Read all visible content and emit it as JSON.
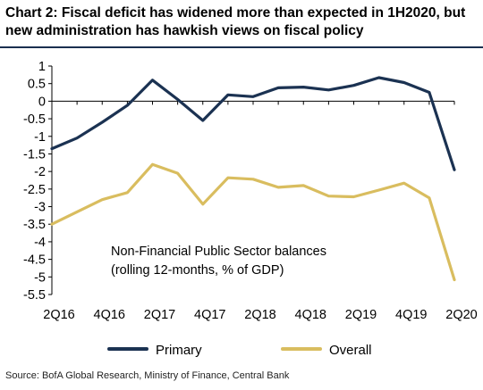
{
  "title": "Chart 2: Fiscal deficit has widened more than expected in 1H2020, but new administration has hawkish views on fiscal policy",
  "source": "Source: BofA Global Research, Ministry of Finance, Central Bank",
  "chart_data": {
    "type": "line",
    "annotation": [
      "Non-Financial Public Sector balances",
      "(rolling 12-months, % of GDP)"
    ],
    "x": [
      "2Q16",
      "3Q16",
      "4Q16",
      "1Q17",
      "2Q17",
      "3Q17",
      "4Q17",
      "1Q18",
      "2Q18",
      "3Q18",
      "4Q18",
      "1Q19",
      "2Q19",
      "3Q19",
      "4Q19",
      "1Q20",
      "2Q20"
    ],
    "x_tick_labels": [
      "2Q16",
      "4Q16",
      "2Q17",
      "4Q17",
      "2Q18",
      "4Q18",
      "2Q19",
      "4Q19",
      "2Q20"
    ],
    "ylim": [
      -5.5,
      1
    ],
    "y_ticks": [
      1,
      0.5,
      0,
      -0.5,
      -1,
      -1.5,
      -2,
      -2.5,
      -3,
      -3.5,
      -4,
      -4.5,
      -5,
      -5.5
    ],
    "grid": false,
    "legend_position": "bottom",
    "series": [
      {
        "name": "Primary",
        "color": "#1b3252",
        "values": [
          -1.35,
          -1.05,
          -0.6,
          -0.12,
          0.6,
          0.05,
          -0.55,
          0.18,
          0.13,
          0.38,
          0.4,
          0.32,
          0.45,
          0.67,
          0.53,
          0.25,
          -1.95
        ]
      },
      {
        "name": "Overall",
        "color": "#d9bd5f",
        "values": [
          -3.5,
          -3.15,
          -2.8,
          -2.6,
          -1.8,
          -2.05,
          -2.93,
          -2.18,
          -2.22,
          -2.45,
          -2.4,
          -2.7,
          -2.72,
          -2.53,
          -2.33,
          -2.75,
          -5.08
        ]
      }
    ]
  }
}
